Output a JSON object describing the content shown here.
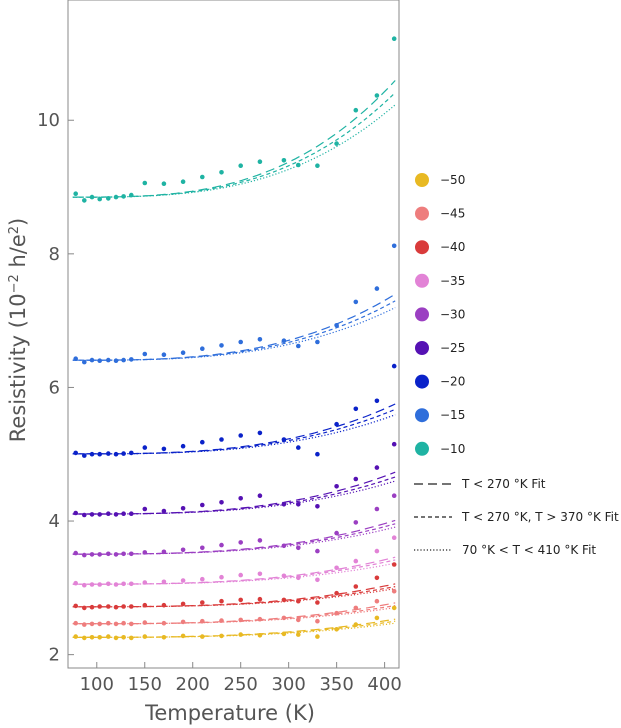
{
  "chart_data": {
    "type": "scatter",
    "xlabel": "Temperature (K)",
    "ylabel_main": "Resistivity (10",
    "ylabel_sup1": "−2",
    "ylabel_mid": " h/e",
    "ylabel_sup2": "2",
    "ylabel_end": ")",
    "xlim": [
      70,
      415
    ],
    "ylim": [
      1.8,
      11.8
    ],
    "x_ticks": [
      100,
      150,
      200,
      250,
      300,
      350,
      400
    ],
    "y_ticks": [
      2,
      4,
      6,
      8,
      10
    ],
    "grid": false,
    "legend_position": "right",
    "x": [
      78,
      87,
      95,
      103,
      112,
      120,
      128,
      136,
      150,
      170,
      190,
      210,
      230,
      250,
      270,
      295,
      310,
      330,
      350,
      370,
      392,
      410
    ],
    "series": [
      {
        "name": "−50",
        "color": "#e8b923",
        "values": [
          2.27,
          2.25,
          2.26,
          2.26,
          2.27,
          2.25,
          2.26,
          2.25,
          2.27,
          2.26,
          2.28,
          2.27,
          2.28,
          2.3,
          2.29,
          2.31,
          2.3,
          2.27,
          2.38,
          2.45,
          2.55,
          2.7
        ]
      },
      {
        "name": "−45",
        "color": "#ee7d7d",
        "values": [
          2.47,
          2.45,
          2.46,
          2.46,
          2.47,
          2.46,
          2.47,
          2.46,
          2.48,
          2.47,
          2.49,
          2.5,
          2.51,
          2.52,
          2.53,
          2.55,
          2.52,
          2.5,
          2.62,
          2.7,
          2.8,
          2.95
        ]
      },
      {
        "name": "−40",
        "color": "#d93b3b",
        "values": [
          2.73,
          2.7,
          2.71,
          2.72,
          2.72,
          2.71,
          2.72,
          2.72,
          2.74,
          2.74,
          2.76,
          2.78,
          2.8,
          2.82,
          2.83,
          2.82,
          2.8,
          2.78,
          2.92,
          3.02,
          3.15,
          3.35
        ]
      },
      {
        "name": "−35",
        "color": "#e283d6",
        "values": [
          3.07,
          3.04,
          3.05,
          3.05,
          3.06,
          3.05,
          3.06,
          3.06,
          3.08,
          3.09,
          3.11,
          3.13,
          3.16,
          3.19,
          3.21,
          3.18,
          3.15,
          3.12,
          3.3,
          3.4,
          3.55,
          3.75
        ]
      },
      {
        "name": "−30",
        "color": "#9b3fc2",
        "values": [
          3.52,
          3.49,
          3.5,
          3.5,
          3.51,
          3.5,
          3.51,
          3.51,
          3.53,
          3.54,
          3.57,
          3.6,
          3.64,
          3.68,
          3.71,
          3.63,
          3.6,
          3.55,
          3.82,
          3.98,
          4.18,
          4.38
        ]
      },
      {
        "name": "−25",
        "color": "#5511b3",
        "values": [
          4.12,
          4.09,
          4.1,
          4.1,
          4.11,
          4.1,
          4.11,
          4.11,
          4.18,
          4.15,
          4.19,
          4.24,
          4.28,
          4.34,
          4.38,
          4.25,
          4.25,
          4.22,
          4.52,
          4.63,
          4.8,
          5.15
        ]
      },
      {
        "name": "−20",
        "color": "#0a22c9",
        "values": [
          5.02,
          4.98,
          5.0,
          5.0,
          5.01,
          5.0,
          5.01,
          5.02,
          5.1,
          5.08,
          5.12,
          5.18,
          5.22,
          5.28,
          5.32,
          5.22,
          5.1,
          5.0,
          5.45,
          5.68,
          5.8,
          6.32
        ]
      },
      {
        "name": "−15",
        "color": "#2f6edb",
        "values": [
          6.43,
          6.38,
          6.41,
          6.4,
          6.41,
          6.4,
          6.41,
          6.42,
          6.5,
          6.49,
          6.52,
          6.58,
          6.63,
          6.68,
          6.72,
          6.7,
          6.62,
          6.68,
          6.93,
          7.28,
          7.48,
          8.12
        ]
      },
      {
        "name": "−10",
        "color": "#1fb3a3",
        "values": [
          8.9,
          8.8,
          8.85,
          8.82,
          8.83,
          8.85,
          8.86,
          8.88,
          9.06,
          9.05,
          9.08,
          9.15,
          9.22,
          9.32,
          9.38,
          9.4,
          9.33,
          9.32,
          9.65,
          10.15,
          10.37,
          11.22
        ]
      }
    ],
    "fits": [
      {
        "name": "T < 270 °K Fit",
        "style": "long-dash",
        "amp": [
          0.27,
          0.31,
          0.34,
          0.4,
          0.5,
          0.62,
          0.74,
          0.98,
          1.73
        ]
      },
      {
        "name": "T < 270 °K, T > 370 °K Fit",
        "style": "short-dash",
        "amp": [
          0.24,
          0.27,
          0.3,
          0.36,
          0.45,
          0.55,
          0.66,
          0.88,
          1.55
        ]
      },
      {
        "name": "70 °K < T < 410 °K Fit",
        "style": "dotted",
        "amp": [
          0.21,
          0.24,
          0.27,
          0.31,
          0.4,
          0.49,
          0.58,
          0.78,
          1.37
        ]
      }
    ]
  }
}
